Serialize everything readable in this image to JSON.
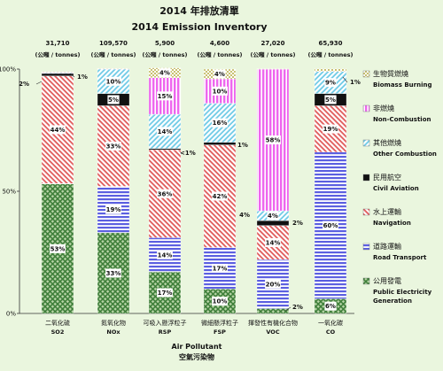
{
  "chart_data": {
    "type": "bar",
    "stacked": true,
    "percent": true,
    "title": "2014 年排放清單",
    "subtitle": "2014 Emission Inventory",
    "xlabel": "Air Pollutant",
    "xlabel_zh": "空氣污染物",
    "unit": "(公噸 / tonnes)",
    "ylim": [
      0,
      100
    ],
    "yticks": [
      "0%",
      "50%",
      "100%"
    ],
    "categories": [
      {
        "zh": "二氧化硫",
        "en": "SO2",
        "total": "31,710"
      },
      {
        "zh": "氮氧化物",
        "en": "NOx",
        "total": "109,570"
      },
      {
        "zh": "可吸入懸浮粒子",
        "en": "RSP",
        "total": "5,900"
      },
      {
        "zh": "微細懸浮粒子",
        "en": "FSP",
        "total": "4,600"
      },
      {
        "zh": "揮發性有機化合物",
        "en": "VOC",
        "total": "27,020"
      },
      {
        "zh": "一氧化碳",
        "en": "CO",
        "total": "65,930"
      }
    ],
    "series": [
      {
        "key": "power",
        "name_zh": "公用發電",
        "name": "Public Electricity Generation",
        "name_lines": [
          "Public Electricity",
          "Generation"
        ],
        "color": "#3f7f3a",
        "values": [
          53,
          33,
          17,
          10,
          2,
          6
        ],
        "labels": [
          "53%",
          "33%",
          "17%",
          "10%",
          "2%",
          "6%"
        ]
      },
      {
        "key": "road",
        "name_zh": "道路運輸",
        "name": "Road Transport",
        "name_lines": [
          "Road Transport"
        ],
        "color": "#5b5fe0",
        "values": [
          0.2,
          19,
          14,
          17,
          20,
          60
        ],
        "labels": [
          "",
          "19%",
          "14%",
          "17%",
          "20%",
          "60%"
        ]
      },
      {
        "key": "navigation",
        "name_zh": "水上運輸",
        "name": "Navigation",
        "name_lines": [
          "Navigation"
        ],
        "color": "#e05a5a",
        "values": [
          44,
          33,
          36,
          42,
          14,
          19
        ],
        "labels": [
          "44%",
          "33%",
          "36%",
          "42%",
          "14%",
          "19%"
        ]
      },
      {
        "key": "civil",
        "name_zh": "民用航空",
        "name": "Civil Aviation",
        "name_lines": [
          "Civil Aviation"
        ],
        "color": "#111111",
        "values": [
          1,
          5,
          0.5,
          1,
          2,
          5
        ],
        "labels": [
          "1%",
          "5%",
          "<1%",
          "1%",
          "2%",
          "5%"
        ]
      },
      {
        "key": "other",
        "name_zh": "其他燃燒",
        "name": "Other Combustion",
        "name_lines": [
          "Other Combustion"
        ],
        "color": "#6ecae6",
        "values": [
          0.3,
          10,
          14,
          16,
          4,
          9
        ],
        "labels": [
          "",
          "10%",
          "14%",
          "16%",
          "4%",
          "9%"
        ]
      },
      {
        "key": "noncomb",
        "name_zh": "非燃燒",
        "name": "Non-Combustion",
        "name_lines": [
          "Non-Combustion"
        ],
        "color": "#ee66ee",
        "values": [
          0.2,
          0.1,
          15,
          10,
          58,
          0.1
        ],
        "labels": [
          "",
          "",
          "15%",
          "10%",
          "58%",
          ""
        ]
      },
      {
        "key": "biomass",
        "name_zh": "生物質燃燒",
        "name": "Biomass Burning",
        "name_lines": [
          "Biomass Burning"
        ],
        "color": "#c8c070",
        "values": [
          0.2,
          0.1,
          4,
          4,
          0.1,
          1
        ],
        "labels": [
          "",
          "",
          "4%",
          "4%",
          "",
          "1%"
        ]
      }
    ],
    "outside_labels": [
      {
        "category": 0,
        "text": "2%",
        "side": "left"
      },
      {
        "category": 0,
        "text": "1%",
        "side": "right"
      },
      {
        "category": 2,
        "text": "<1%",
        "side": "right"
      },
      {
        "category": 3,
        "text": "1%",
        "side": "right"
      },
      {
        "category": 4,
        "text": "4%",
        "side": "left"
      },
      {
        "category": 4,
        "text": "2%",
        "side": "right"
      },
      {
        "category": 4,
        "text": "2%",
        "side": "right"
      },
      {
        "category": 5,
        "text": "1%",
        "side": "right"
      }
    ],
    "legend": "right"
  }
}
